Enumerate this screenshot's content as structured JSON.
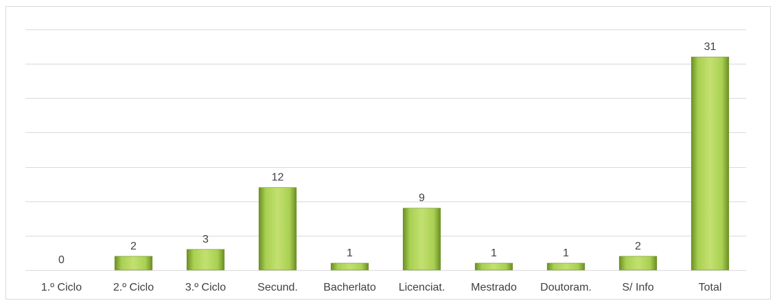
{
  "chart_data": {
    "type": "bar",
    "categories": [
      "1.º Ciclo",
      "2.º Ciclo",
      "3.º Ciclo",
      "Secund.",
      "Bacherlato",
      "Licenciat.",
      "Mestrado",
      "Doutoram.",
      "S/ Info",
      "Total"
    ],
    "values": [
      0,
      2,
      3,
      12,
      1,
      9,
      1,
      1,
      2,
      31
    ],
    "title": "",
    "xlabel": "",
    "ylabel": "",
    "ylim": [
      0,
      35
    ],
    "grid": true,
    "legend": "none",
    "data_labels": true,
    "colors": {
      "bar": "#8fbc3a",
      "bar_light": "#c3e070",
      "bar_dark": "#6b8f24",
      "grid": "#d9d9d9",
      "text": "#404040"
    }
  }
}
